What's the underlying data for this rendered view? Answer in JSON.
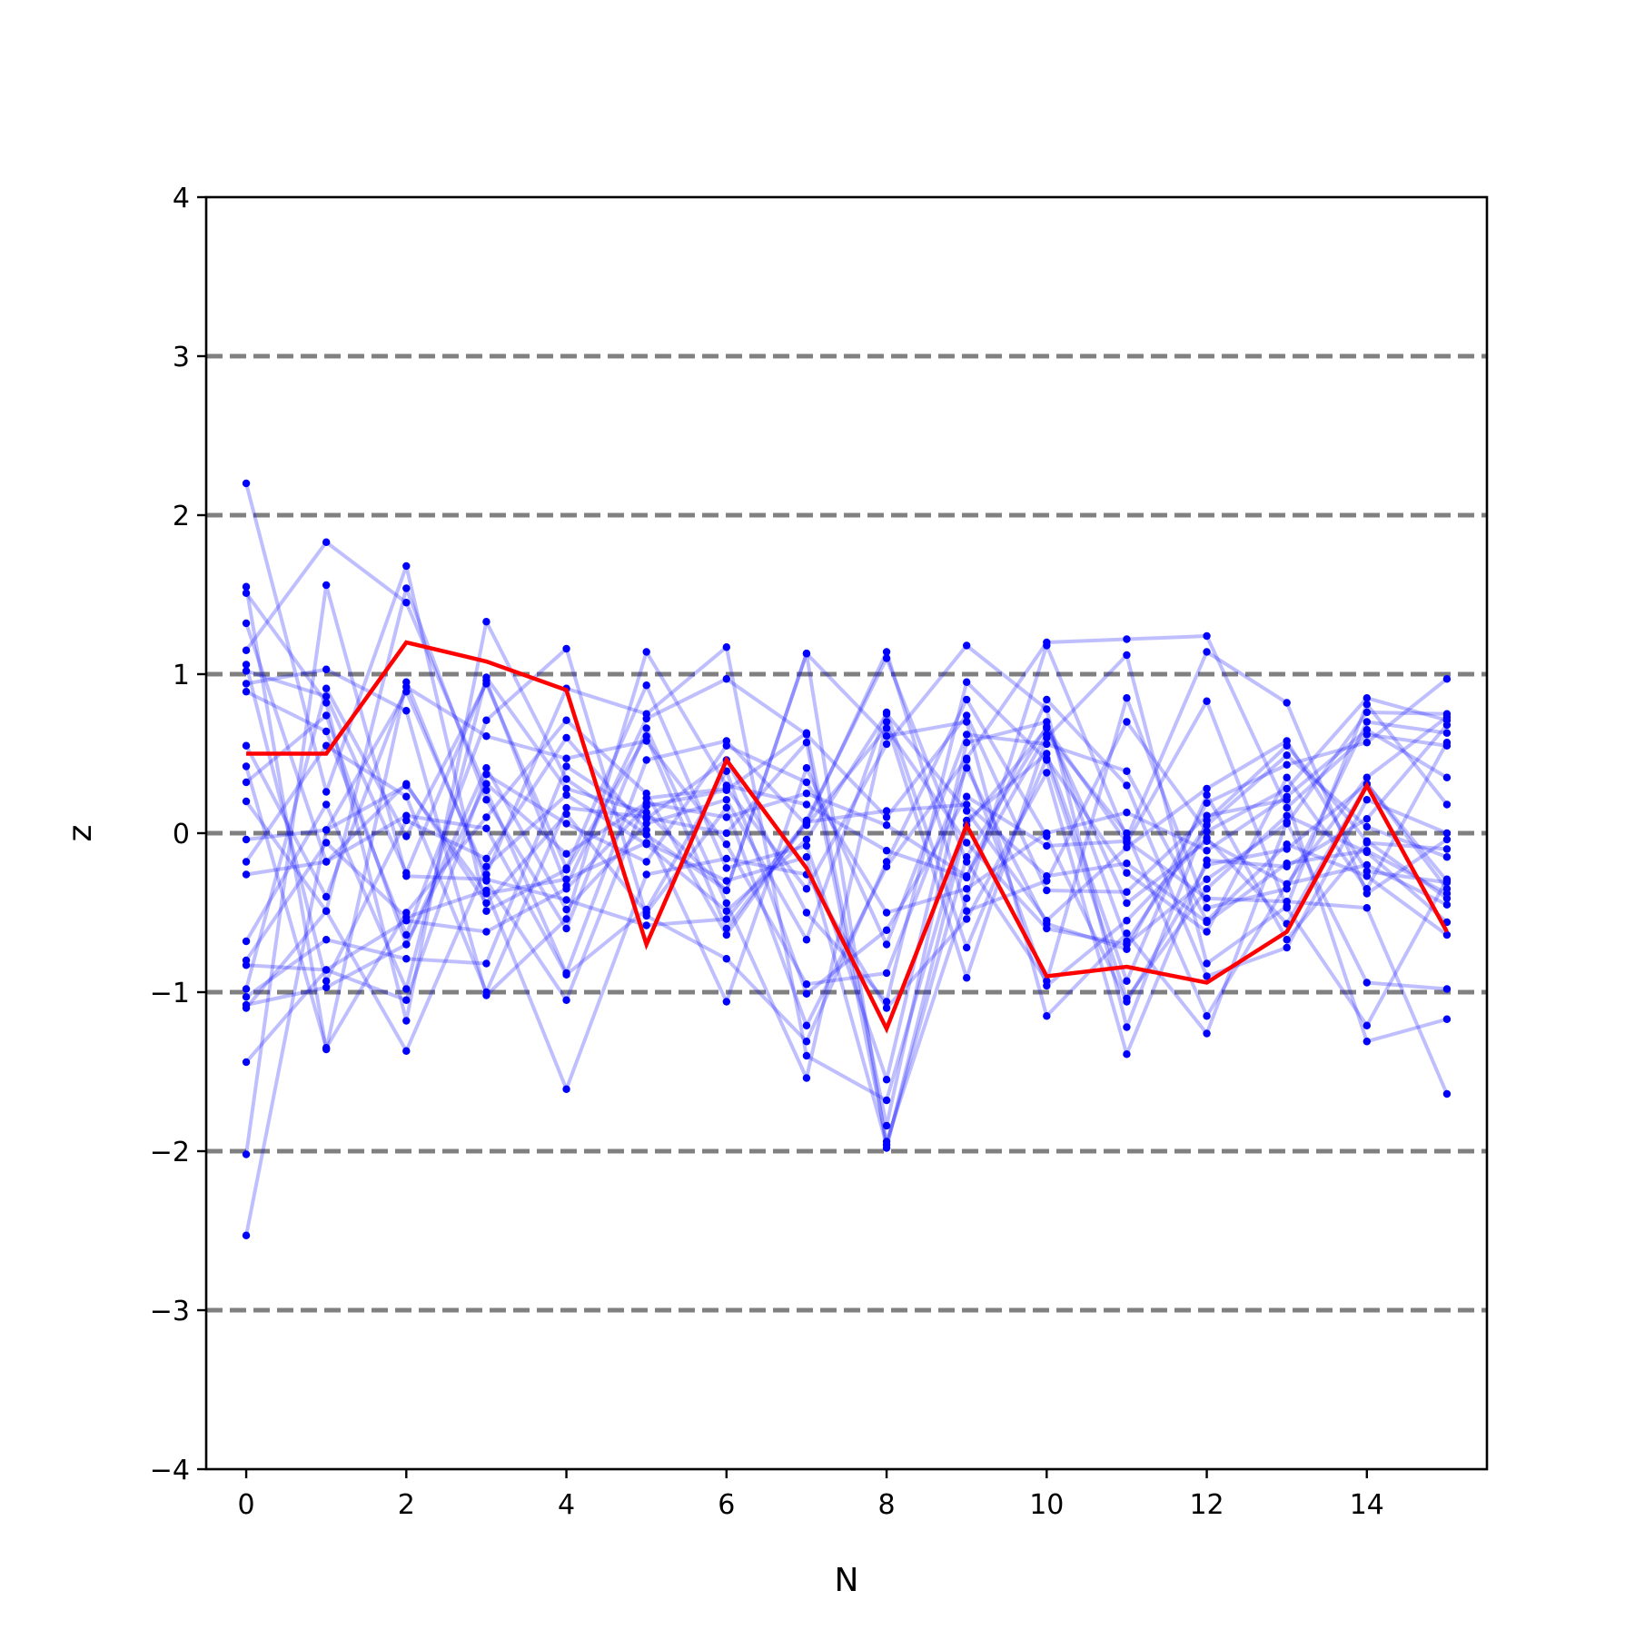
{
  "chart_data": {
    "type": "line",
    "title": "",
    "xlabel": "N",
    "ylabel": "z",
    "xlim": [
      -0.5,
      15.5
    ],
    "ylim": [
      -4,
      4
    ],
    "x_ticks": [
      0,
      2,
      4,
      6,
      8,
      10,
      12,
      14
    ],
    "y_ticks": [
      -4,
      -3,
      -2,
      -1,
      0,
      1,
      2,
      3,
      4
    ],
    "y_tick_labels": [
      "−4",
      "−3",
      "−2",
      "−1",
      "0",
      "1",
      "2",
      "3",
      "4"
    ],
    "reference_lines_y": [
      -3,
      -2,
      -1,
      0,
      1,
      2,
      3
    ],
    "colors": {
      "background_series": "#0000ff",
      "highlight_series": "#ff0000",
      "reference_lines": "#808080",
      "axes": "#000000"
    },
    "x": [
      0,
      1,
      2,
      3,
      4,
      5,
      6,
      7,
      8,
      9,
      10,
      11,
      12,
      13,
      14,
      15
    ],
    "highlight": {
      "values": [
        0.5,
        0.5,
        1.2,
        1.08,
        0.9,
        -0.7,
        0.46,
        -0.22,
        -1.23,
        0.05,
        -0.9,
        -0.84,
        -0.94,
        -0.62,
        0.3,
        -0.62
      ]
    },
    "series": [
      {
        "values": [
          2.2,
          0.26,
          1.68,
          -0.49,
          -0.23,
          0.61,
          -0.6,
          0.06,
          1.14,
          -0.49,
          -0.3,
          0.7,
          0.01,
          0.28,
          0.85,
          0.71
        ]
      },
      {
        "values": [
          1.55,
          -1.36,
          0.95,
          -0.3,
          -1.05,
          0.22,
          0.28,
          -0.35,
          0.56,
          1.18,
          0.78,
          -1.22,
          0.08,
          0.55,
          -0.05,
          -0.41
        ]
      },
      {
        "values": [
          1.51,
          0.82,
          -1.18,
          1.33,
          0.34,
          -0.01,
          -0.36,
          1.13,
          -1.98,
          0.05,
          0.66,
          -0.06,
          0.83,
          -0.47,
          -1.21,
          -0.29
        ]
      },
      {
        "values": [
          1.32,
          -0.18,
          0.31,
          -0.44,
          0.12,
          -0.5,
          0.16,
          -1.21,
          -0.21,
          0.47,
          1.2,
          1.22,
          1.24,
          0.16,
          0.62,
          0.55
        ]
      },
      {
        "values": [
          1.15,
          1.83,
          1.45,
          0.27,
          -0.88,
          0.46,
          0.58,
          0.05,
          0.66,
          -0.06,
          -0.6,
          -0.7,
          -0.29,
          0.06,
          0.76,
          0.75
        ]
      },
      {
        "values": [
          1.06,
          -0.93,
          0.08,
          -0.16,
          0.6,
          0.02,
          -1.06,
          0.41,
          -0.7,
          0.62,
          0.56,
          0.39,
          -0.55,
          -0.07,
          -0.27,
          -0.64
        ]
      },
      {
        "values": [
          1.02,
          0.86,
          -0.25,
          0.96,
          -0.33,
          0.72,
          0.97,
          0.62,
          0.1,
          0.74,
          -0.36,
          -0.37,
          0.11,
          0.21,
          -1.31,
          -1.17
        ]
      },
      {
        "values": [
          0.94,
          1.03,
          0.77,
          -1.02,
          -0.54,
          1.14,
          0.3,
          0.18,
          -0.11,
          -0.28,
          0.84,
          0.3,
          -0.9,
          -0.72,
          0.21,
          0.0
        ]
      },
      {
        "values": [
          0.89,
          0.64,
          -0.64,
          0.71,
          1.16,
          -0.52,
          -0.79,
          -1.31,
          -0.18,
          0.84,
          -0.02,
          -1.06,
          -0.2,
          -0.1,
          0.31,
          -0.35
        ]
      },
      {
        "values": [
          0.55,
          -0.4,
          0.92,
          0.61,
          0.47,
          0.58,
          -0.07,
          -0.95,
          -0.88,
          0.41,
          -0.57,
          -0.73,
          0.19,
          0.43,
          0.57,
          0.97
        ]
      },
      {
        "values": [
          0.42,
          -1.35,
          -0.5,
          0.1,
          0.71,
          0.25,
          -0.64,
          0.08,
          1.1,
          -0.18,
          -0.93,
          0.85,
          -0.47,
          -0.35,
          0.7,
          0.63
        ]
      },
      {
        "values": [
          0.32,
          0.74,
          -0.7,
          0.41,
          -0.48,
          0.06,
          0.21,
          -0.67,
          0.76,
          -0.72,
          0.47,
          -0.25,
          -0.62,
          0.35,
          -0.35,
          0.57
        ]
      },
      {
        "values": [
          0.2,
          -0.49,
          1.54,
          0.21,
          -0.6,
          0.66,
          -0.44,
          -1.54,
          0.7,
          -0.91,
          0.6,
          1.12,
          -0.82,
          -0.46,
          0.81,
          0.18
        ]
      },
      {
        "values": [
          -0.04,
          0.02,
          0.89,
          -0.26,
          0.91,
          0.75,
          1.17,
          -1.4,
          -1.68,
          0.08,
          0.5,
          -0.93,
          0.24,
          -0.67,
          -0.06,
          -0.1
        ]
      },
      {
        "values": [
          -0.18,
          0.55,
          0.23,
          -1.0,
          0.16,
          0.1,
          0.0,
          0.57,
          -1.94,
          -0.41,
          1.18,
          -0.03,
          1.14,
          0.82,
          -0.38,
          -0.04
        ]
      },
      {
        "values": [
          -0.26,
          -0.18,
          0.11,
          0.03,
          -0.89,
          -0.48,
          0.39,
          -1.01,
          -0.61,
          0.23,
          -0.08,
          -0.05,
          -0.41,
          -0.43,
          -0.47,
          -1.64
        ]
      },
      {
        "values": [
          -0.68,
          0.18,
          -0.98,
          0.98,
          0.28,
          0.13,
          -0.36,
          1.13,
          0.61,
          0.7,
          -1.15,
          -0.63,
          -1.26,
          0.07,
          -0.94,
          -0.98
        ]
      },
      {
        "values": [
          -0.8,
          -0.06,
          -0.53,
          -0.36,
          -1.61,
          -0.26,
          -0.16,
          -0.26,
          -1.1,
          -0.54,
          0.38,
          -1.39,
          -0.17,
          -0.21,
          0.09,
          0.68
        ]
      },
      {
        "values": [
          -0.83,
          -0.86,
          -0.55,
          -0.62,
          -0.35,
          0.17,
          0.27,
          0.63,
          -1.84,
          0.46,
          -0.96,
          -0.55,
          -0.03,
          -0.57,
          0.31,
          -0.3
        ]
      },
      {
        "values": [
          -0.98,
          0.91,
          -0.02,
          0.94,
          -0.22,
          0.93,
          -0.22,
          -0.08,
          -1.55,
          0.57,
          0.7,
          -0.68,
          0.05,
          0.49,
          0.04,
          -0.15
        ]
      },
      {
        "values": [
          -1.03,
          -0.67,
          -0.79,
          -0.82,
          0.42,
          0.09,
          0.46,
          -0.5,
          -1.06,
          0.95,
          0.46,
          -1.04,
          -0.35,
          0.11,
          -0.12,
          -0.56
        ]
      },
      {
        "values": [
          -1.08,
          -0.97,
          -0.7,
          0.31,
          -0.13,
          0.19,
          0.1,
          0.25,
          0.05,
          -0.27,
          0.62,
          0.0,
          -1.15,
          -0.32,
          0.35,
          0.73
        ]
      },
      {
        "values": [
          -1.1,
          -0.49,
          -1.37,
          -0.21,
          0.24,
          -0.07,
          -0.49,
          -0.04,
          0.75,
          0.14,
          -0.55,
          -0.09,
          0.28,
          0.58,
          -0.24,
          -0.31
        ]
      },
      {
        "values": [
          -1.44,
          -0.86,
          -1.05,
          0.37,
          0.06,
          -0.18,
          0.55,
          0.32,
          -0.5,
          -0.35,
          0.0,
          0.13,
          -0.11,
          0.23,
          0.65,
          0.35
        ]
      },
      {
        "values": [
          -2.02,
          1.56,
          -0.27,
          -0.29,
          -0.42,
          -0.58,
          -0.54,
          0.07,
          0.14,
          0.18,
          -0.27,
          -0.19,
          -0.56,
          -0.19,
          -0.11,
          -0.38
        ]
      },
      {
        "values": [
          -2.53,
          0.02,
          0.3,
          -0.38,
          -0.29,
          -0.06,
          -0.3,
          -0.15,
          -1.96,
          -0.15,
          0.67,
          -0.44,
          -0.05,
          -0.32,
          -0.2,
          -0.45
        ]
      }
    ]
  }
}
